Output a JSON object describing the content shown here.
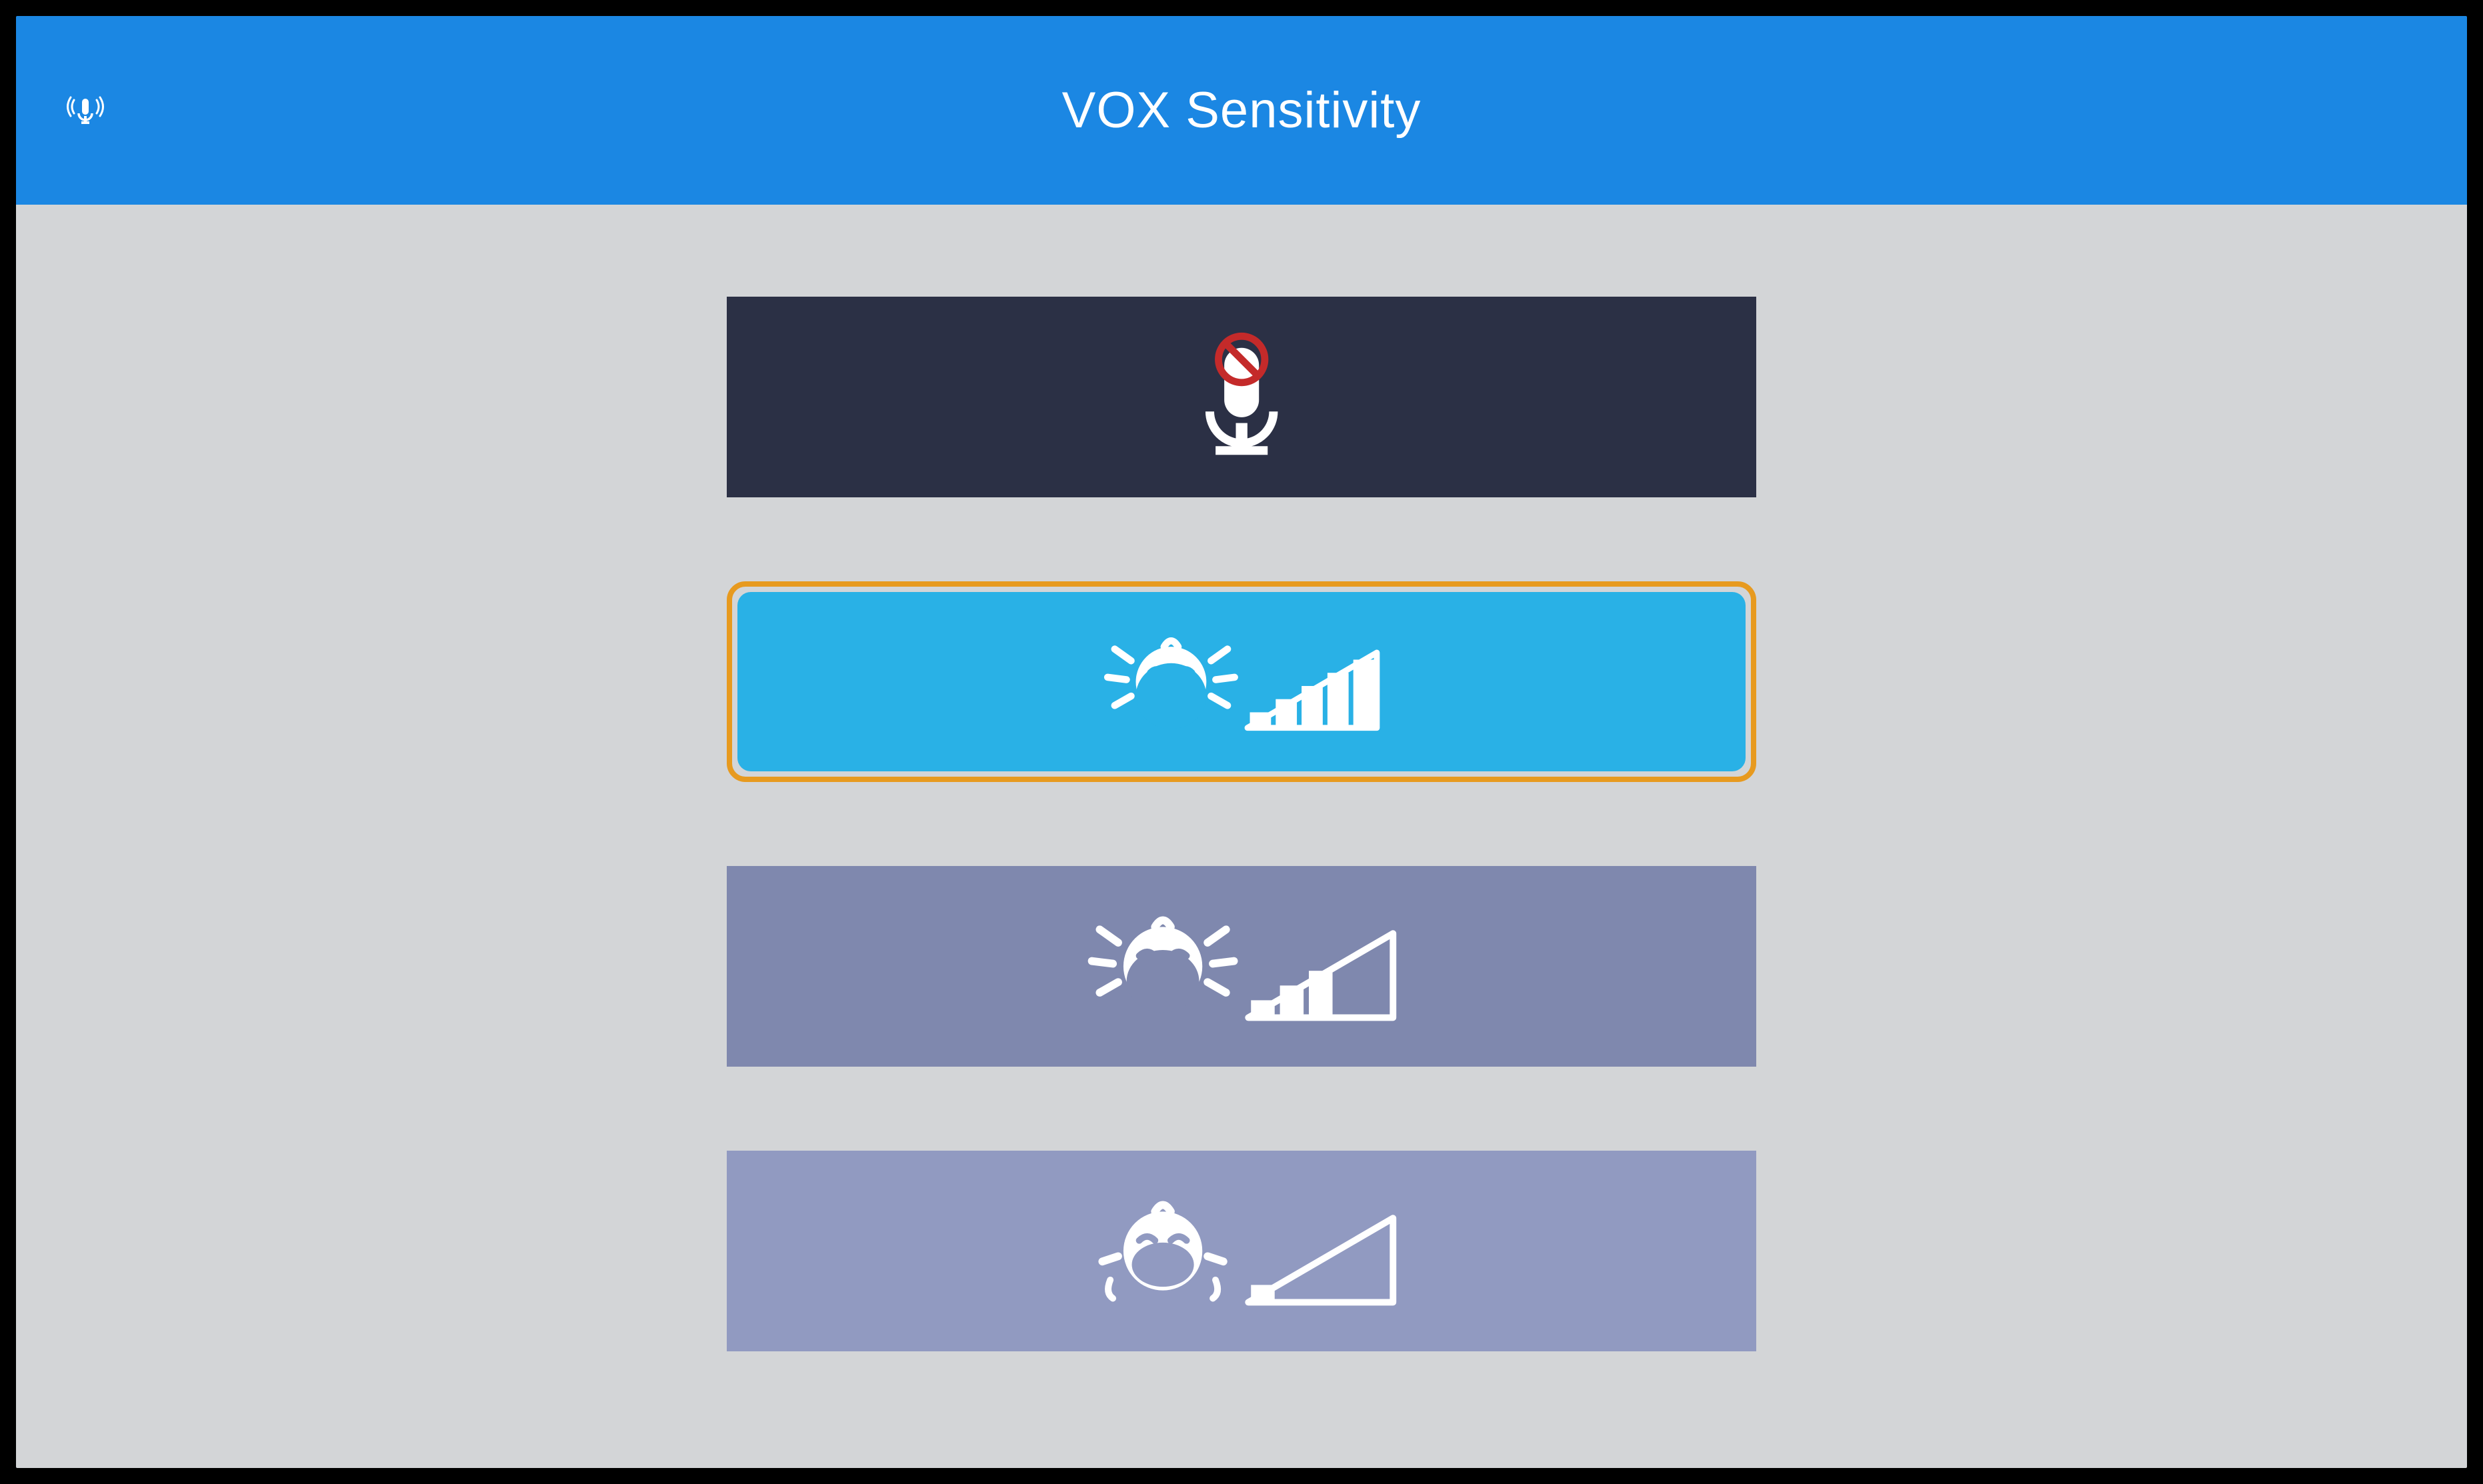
{
  "header": {
    "title": "VOX Sensitivity",
    "icon": "broadcasting-microphone-icon",
    "background_color": "#1b87e3",
    "text_color": "#ffffff"
  },
  "main": {
    "background_color": "#d3d5d7",
    "highlight_color": "#e79a1f",
    "options": [
      {
        "id": "vox-off",
        "icon_name": "microphone-disabled-icon",
        "level_bars_filled": 0,
        "level_bars_total": 0,
        "selected": false,
        "background_color": "#2b3045",
        "icon_color": "#ffffff",
        "accent_color": "#c42a2a"
      },
      {
        "id": "vox-high",
        "icon_name": "crying-loud-icon",
        "level_bars_filled": 5,
        "level_bars_total": 5,
        "selected": true,
        "background_color": "#29b1e6",
        "icon_color": "#ffffff",
        "accent_color": "#ffffff"
      },
      {
        "id": "vox-medium",
        "icon_name": "crying-medium-icon",
        "level_bars_filled": 3,
        "level_bars_total": 5,
        "selected": false,
        "background_color": "#7f88ae",
        "icon_color": "#ffffff",
        "accent_color": "#2b3045"
      },
      {
        "id": "vox-low",
        "icon_name": "crying-quiet-icon",
        "level_bars_filled": 1,
        "level_bars_total": 5,
        "selected": false,
        "background_color": "#919ac1",
        "icon_color": "#ffffff",
        "accent_color": "#2b3045"
      }
    ]
  }
}
